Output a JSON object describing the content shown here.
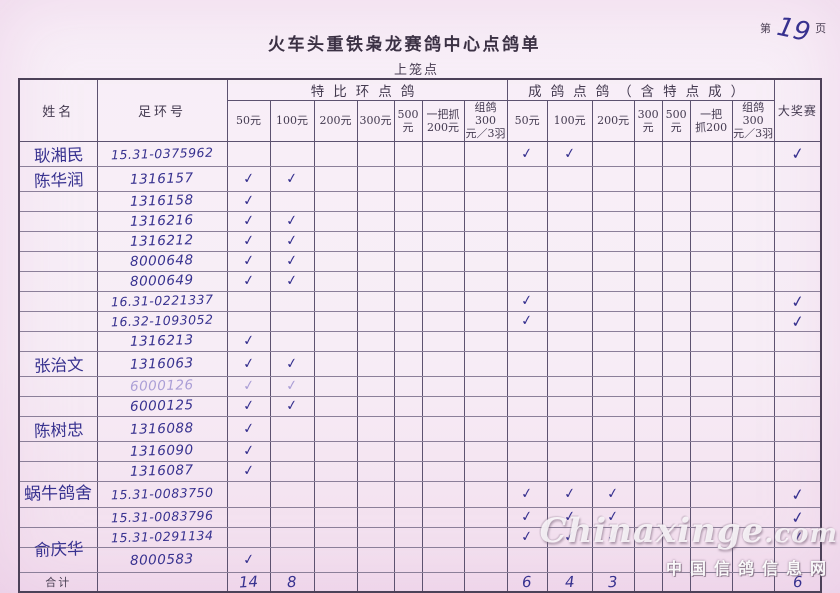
{
  "page": {
    "title": "火车头重铁枭龙赛鸽中心点鸽单",
    "subtitle": "上笼点",
    "page_label_prefix": "第",
    "page_number": "19",
    "page_label_suffix": "页"
  },
  "table": {
    "headers": {
      "name": "姓名",
      "ring": "足环号",
      "tebi_group": "特比环点鸽",
      "chengge_group": "成鸽点鸽（含特点成）",
      "prize": "大奖赛",
      "sub": [
        "50元",
        "100元",
        "200元",
        "300元",
        "500元",
        "一把抓\n200元",
        "组鸽300\n元／3羽"
      ],
      "sub2": [
        "50元",
        "100元",
        "200元",
        "300元",
        "500元",
        "一把\n抓200",
        "组鸽300\n元／3羽"
      ]
    },
    "check_glyph": "✓",
    "rows": [
      {
        "name": "耿湘民",
        "ring": "15.31-0375962",
        "tb": [
          0,
          0,
          0,
          0,
          0,
          0,
          0
        ],
        "cg": [
          1,
          1,
          0,
          0,
          0,
          0,
          0
        ],
        "prize": 1,
        "faint": false
      },
      {
        "name": "陈华润",
        "ring": "1316157",
        "tb": [
          1,
          1,
          0,
          0,
          0,
          0,
          0
        ],
        "cg": [
          0,
          0,
          0,
          0,
          0,
          0,
          0
        ],
        "prize": 0,
        "faint": false
      },
      {
        "name": "",
        "ring": "1316158",
        "tb": [
          1,
          0,
          0,
          0,
          0,
          0,
          0
        ],
        "cg": [
          0,
          0,
          0,
          0,
          0,
          0,
          0
        ],
        "prize": 0,
        "faint": false
      },
      {
        "name": "",
        "ring": "1316216",
        "tb": [
          1,
          1,
          0,
          0,
          0,
          0,
          0
        ],
        "cg": [
          0,
          0,
          0,
          0,
          0,
          0,
          0
        ],
        "prize": 0,
        "faint": false
      },
      {
        "name": "",
        "ring": "1316212",
        "tb": [
          1,
          1,
          0,
          0,
          0,
          0,
          0
        ],
        "cg": [
          0,
          0,
          0,
          0,
          0,
          0,
          0
        ],
        "prize": 0,
        "faint": false
      },
      {
        "name": "",
        "ring": "8000648",
        "tb": [
          1,
          1,
          0,
          0,
          0,
          0,
          0
        ],
        "cg": [
          0,
          0,
          0,
          0,
          0,
          0,
          0
        ],
        "prize": 0,
        "faint": false
      },
      {
        "name": "",
        "ring": "8000649",
        "tb": [
          1,
          1,
          0,
          0,
          0,
          0,
          0
        ],
        "cg": [
          0,
          0,
          0,
          0,
          0,
          0,
          0
        ],
        "prize": 0,
        "faint": false
      },
      {
        "name": "",
        "ring": "16.31-0221337",
        "tb": [
          0,
          0,
          0,
          0,
          0,
          0,
          0
        ],
        "cg": [
          1,
          0,
          0,
          0,
          0,
          0,
          0
        ],
        "prize": 1,
        "faint": false
      },
      {
        "name": "",
        "ring": "16.32-1093052",
        "tb": [
          0,
          0,
          0,
          0,
          0,
          0,
          0
        ],
        "cg": [
          1,
          0,
          0,
          0,
          0,
          0,
          0
        ],
        "prize": 1,
        "faint": false
      },
      {
        "name": "",
        "ring": "1316213",
        "tb": [
          1,
          0,
          0,
          0,
          0,
          0,
          0
        ],
        "cg": [
          0,
          0,
          0,
          0,
          0,
          0,
          0
        ],
        "prize": 0,
        "faint": false
      },
      {
        "name": "张治文",
        "ring": "1316063",
        "tb": [
          1,
          1,
          0,
          0,
          0,
          0,
          0
        ],
        "cg": [
          0,
          0,
          0,
          0,
          0,
          0,
          0
        ],
        "prize": 0,
        "faint": false
      },
      {
        "name": "",
        "ring": "6000126",
        "tb": [
          1,
          1,
          0,
          0,
          0,
          0,
          0
        ],
        "cg": [
          0,
          0,
          0,
          0,
          0,
          0,
          0
        ],
        "prize": 0,
        "faint": true
      },
      {
        "name": "",
        "ring": "6000125",
        "tb": [
          1,
          1,
          0,
          0,
          0,
          0,
          0
        ],
        "cg": [
          0,
          0,
          0,
          0,
          0,
          0,
          0
        ],
        "prize": 0,
        "faint": false
      },
      {
        "name": "陈树忠",
        "ring": "1316088",
        "tb": [
          1,
          0,
          0,
          0,
          0,
          0,
          0
        ],
        "cg": [
          0,
          0,
          0,
          0,
          0,
          0,
          0
        ],
        "prize": 0,
        "faint": false
      },
      {
        "name": "",
        "ring": "1316090",
        "tb": [
          1,
          0,
          0,
          0,
          0,
          0,
          0
        ],
        "cg": [
          0,
          0,
          0,
          0,
          0,
          0,
          0
        ],
        "prize": 0,
        "faint": false
      },
      {
        "name": "",
        "ring": "1316087",
        "tb": [
          1,
          0,
          0,
          0,
          0,
          0,
          0
        ],
        "cg": [
          0,
          0,
          0,
          0,
          0,
          0,
          0
        ],
        "prize": 0,
        "faint": false
      },
      {
        "name": "蜗牛鸽舍",
        "ring": "15.31-0083750",
        "tb": [
          0,
          0,
          0,
          0,
          0,
          0,
          0
        ],
        "cg": [
          1,
          1,
          1,
          0,
          0,
          0,
          0
        ],
        "prize": 1,
        "faint": false
      },
      {
        "name": "",
        "ring": "15.31-0083796",
        "tb": [
          0,
          0,
          0,
          0,
          0,
          0,
          0
        ],
        "cg": [
          1,
          1,
          1,
          0,
          0,
          0,
          0
        ],
        "prize": 1,
        "faint": false
      },
      {
        "name": "",
        "ring": "15.31-0291134",
        "tb": [
          0,
          0,
          0,
          0,
          0,
          0,
          0
        ],
        "cg": [
          1,
          1,
          1,
          0,
          0,
          0,
          0
        ],
        "prize": 1,
        "faint": false
      },
      {
        "name": "俞庆华",
        "ring": "8000583",
        "tb": [
          1,
          0,
          0,
          0,
          0,
          0,
          0
        ],
        "cg": [
          0,
          0,
          0,
          0,
          0,
          0,
          0
        ],
        "prize": 0,
        "faint": false
      }
    ],
    "totals": {
      "label": "合计",
      "tb": [
        "14",
        "8",
        "",
        "",
        "",
        "",
        ""
      ],
      "cg": [
        "6",
        "4",
        "3",
        "",
        "",
        "",
        ""
      ],
      "prize": "6"
    }
  },
  "watermark": {
    "brand": "Chinaxinge",
    "brand_suffix": ".com",
    "caption": "中国信鸽信息网"
  },
  "colors": {
    "ink": "#37318f",
    "faint_ink": "#ab9fd6",
    "print_text": "#443a50",
    "grid_line": "#5d5270",
    "paper": "#f7edf6"
  }
}
